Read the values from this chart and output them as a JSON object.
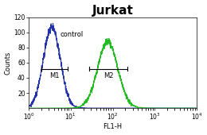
{
  "title": "Jurkat",
  "xlabel": "FL1-H",
  "ylabel": "Counts",
  "xlim": [
    1.0,
    10000.0
  ],
  "ylim": [
    0,
    120
  ],
  "yticks": [
    20,
    40,
    60,
    80,
    100,
    120
  ],
  "xticks": [
    1.0,
    10.0,
    100.0,
    1000.0,
    10000.0
  ],
  "xtick_labels": [
    "10⁰",
    "10¹",
    "10²",
    "10³",
    "10⁴"
  ],
  "control_color": "#2233aa",
  "sample_color": "#22bb22",
  "control_peak_log": 0.55,
  "control_peak_y": 108,
  "control_sigma": 0.2,
  "sample_peak_log": 1.88,
  "sample_peak_y": 88,
  "sample_sigma": 0.24,
  "noise_scale_ctrl": 5.0,
  "noise_scale_samp": 4.0,
  "m1_x1": 2.0,
  "m1_x2": 8.5,
  "m1_y": 52,
  "m2_x1": 28.0,
  "m2_x2": 220.0,
  "m2_y": 52,
  "annotation_control": "control",
  "annotation_m1": "M1",
  "annotation_m2": "M2",
  "title_fontsize": 11,
  "label_fontsize": 6,
  "tick_fontsize": 5.5,
  "annot_fontsize": 6,
  "background_color": "#ffffff",
  "plot_bg_color": "#ffffff"
}
